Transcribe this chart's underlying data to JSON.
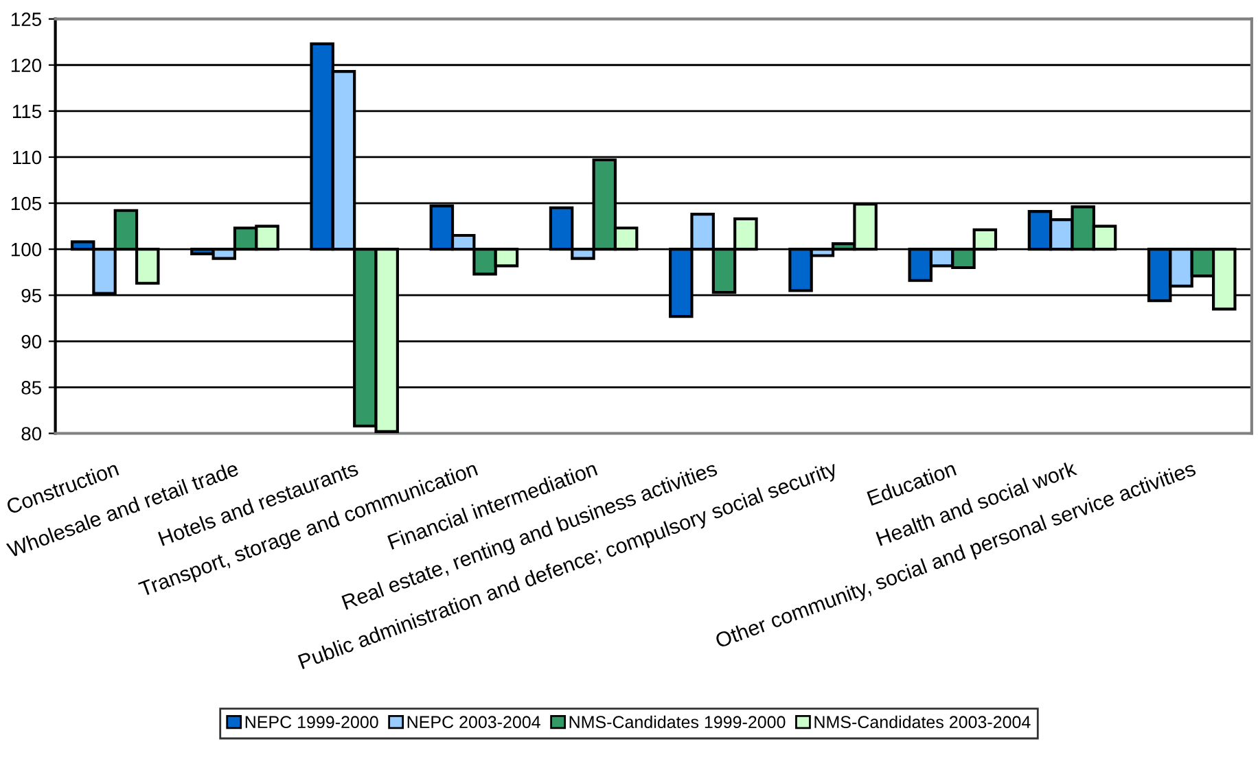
{
  "chart_data": {
    "type": "bar",
    "categories": [
      "Construction",
      "Wholesale and retail trade",
      "Hotels and restaurants",
      "Transport, storage and communication",
      "Financial intermediation",
      "Real estate, renting and business activities",
      "Public administration and defence; compulsory social security",
      "Education",
      "Health and social work",
      "Other community, social and personal service activities"
    ],
    "series": [
      {
        "name": "NEPC 1999-2000",
        "color": "#0066cc",
        "base": [
          100,
          100,
          100,
          100,
          100,
          100,
          100,
          100,
          100,
          100
        ],
        "values": [
          0.8,
          -0.5,
          22.3,
          4.7,
          4.5,
          -7.3,
          -4.5,
          -3.4,
          4.1,
          -5.6
        ]
      },
      {
        "name": "NEPC 2003-2004",
        "color": "#99ccff",
        "base": [
          100,
          100,
          100,
          100,
          100,
          100,
          100,
          100,
          100,
          100
        ],
        "values": [
          -4.8,
          -1.0,
          19.3,
          1.5,
          -1.0,
          3.8,
          -0.7,
          -1.8,
          3.2,
          -4.0
        ]
      },
      {
        "name": "NMS-Candidates 1999-2000",
        "color": "#339966",
        "base": [
          100,
          100,
          100,
          100,
          100,
          100,
          100,
          100,
          100,
          100
        ],
        "values": [
          4.2,
          2.3,
          -19.2,
          -2.7,
          9.7,
          -4.7,
          0.6,
          -2.0,
          4.6,
          -2.9
        ]
      },
      {
        "name": "NMS-Candidates 2003-2004",
        "color": "#ccffcc",
        "base": [
          100,
          100,
          100,
          100,
          100,
          100,
          100,
          100,
          100,
          100
        ],
        "values": [
          -3.7,
          2.5,
          -19.8,
          -1.8,
          2.3,
          3.3,
          4.9,
          2.1,
          2.5,
          -6.5
        ]
      }
    ],
    "ylim": [
      80,
      125
    ],
    "yticks": [
      80,
      85,
      90,
      95,
      100,
      105,
      110,
      115,
      120,
      125
    ],
    "grid": "y",
    "legend": "bottom"
  }
}
